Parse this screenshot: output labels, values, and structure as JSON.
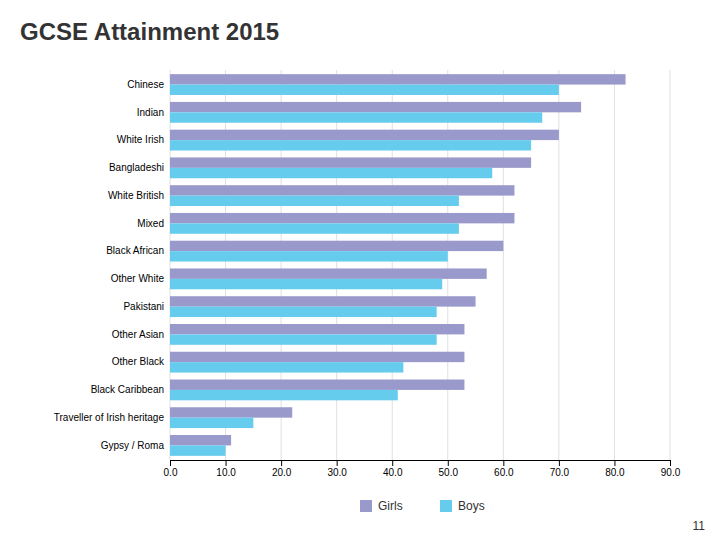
{
  "chart_data": {
    "type": "bar",
    "orientation": "horizontal",
    "title": "GCSE Attainment 2015",
    "categories": [
      "Chinese",
      "Indian",
      "White Irish",
      "Bangladeshi",
      "White British",
      "Mixed",
      "Black African",
      "Other White",
      "Pakistani",
      "Other Asian",
      "Other Black",
      "Black Caribbean",
      "Traveller of Irish heritage",
      "Gypsy / Roma"
    ],
    "series": [
      {
        "name": "Girls",
        "color": "#9999cc",
        "values": [
          82,
          74,
          70,
          65,
          62,
          62,
          60,
          57,
          55,
          53,
          53,
          53,
          22,
          11
        ]
      },
      {
        "name": "Boys",
        "color": "#66ccee",
        "values": [
          70,
          67,
          65,
          58,
          52,
          52,
          50,
          49,
          48,
          48,
          42,
          41,
          15,
          10
        ]
      }
    ],
    "xlim": [
      0,
      90
    ],
    "xticks": [
      {
        "value": 0,
        "label": "0.0"
      },
      {
        "value": 10,
        "label": "10.0"
      },
      {
        "value": 20,
        "label": "20.0"
      },
      {
        "value": 30,
        "label": "30.0"
      },
      {
        "value": 40,
        "label": "40.0"
      },
      {
        "value": 50,
        "label": "50.0"
      },
      {
        "value": 60,
        "label": "60.0"
      },
      {
        "value": 70,
        "label": "70.0"
      },
      {
        "value": 80,
        "label": "80.0"
      },
      {
        "value": 90,
        "label": "90.0"
      }
    ],
    "grid": true,
    "legend": "bottom",
    "annotations": [
      "11"
    ]
  }
}
